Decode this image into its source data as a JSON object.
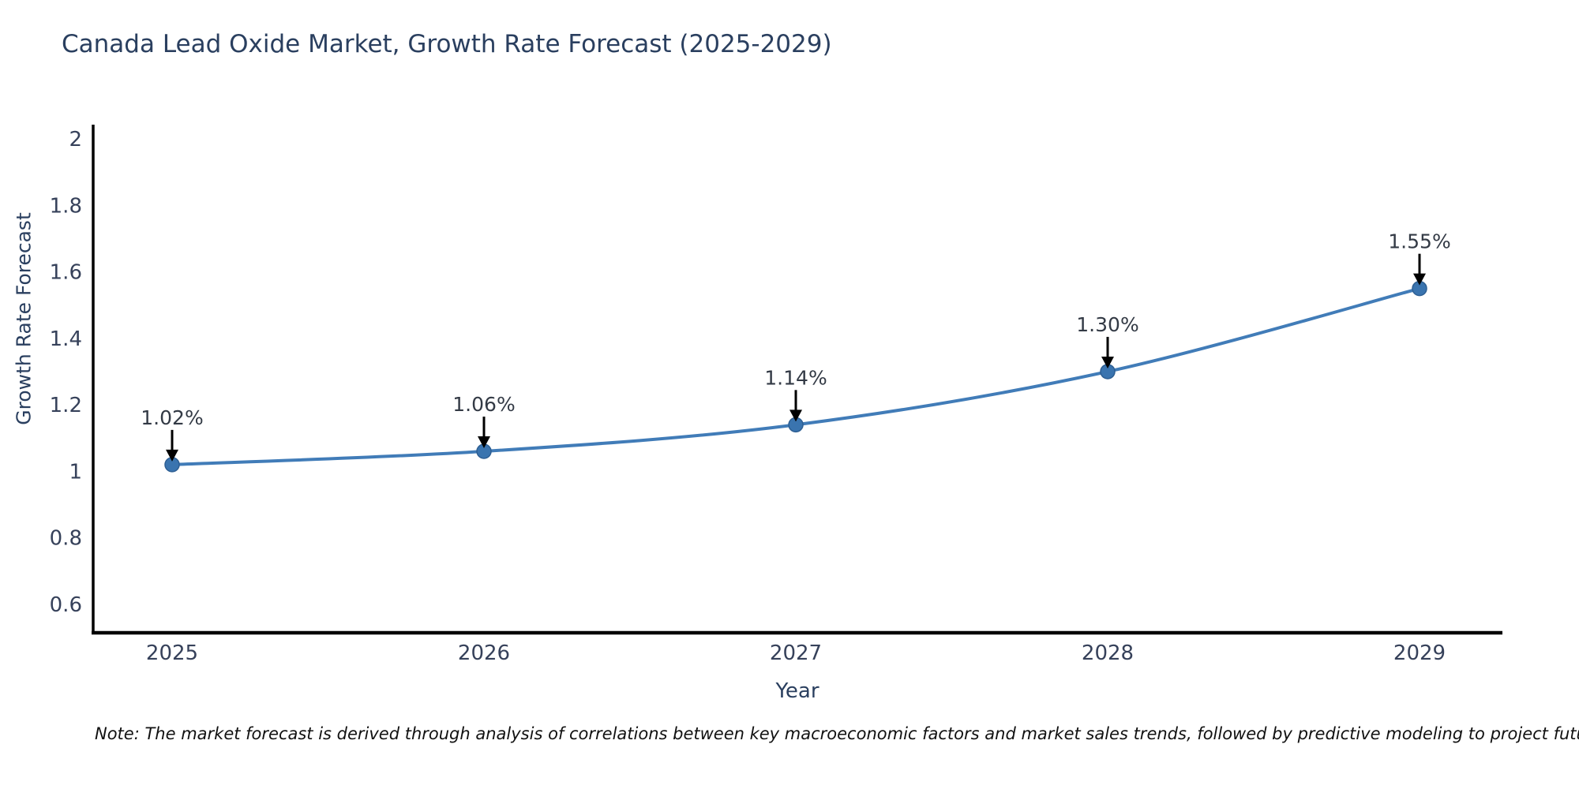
{
  "title": "Canada Lead Oxide Market, Growth Rate Forecast (2025-2029)",
  "footnote": "Note: The market forecast is derived through analysis of correlations between key macroeconomic factors and market sales trends, followed by predictive modeling to project future sales",
  "chart_data": {
    "type": "line",
    "title": "Canada Lead Oxide Market, Growth Rate Forecast (2025-2029)",
    "xlabel": "Year",
    "ylabel": "Growth Rate Forecast",
    "categories": [
      "2025",
      "2026",
      "2027",
      "2028",
      "2029"
    ],
    "series": [
      {
        "name": "Growth Rate Forecast",
        "values": [
          1.02,
          1.06,
          1.14,
          1.3,
          1.55
        ],
        "point_labels": [
          "1.02%",
          "1.06%",
          "1.14%",
          "1.30%",
          "1.55%"
        ]
      }
    ],
    "ytick_labels": [
      "2",
      "1.8",
      "1.6",
      "1.4",
      "1.2",
      "1",
      "0.8",
      "0.6"
    ],
    "ytick_values": [
      2,
      1.8,
      1.6,
      1.4,
      1.2,
      1,
      0.8,
      0.6
    ],
    "ylim": [
      0.514,
      2.043
    ],
    "grid": false,
    "legend_position": "none",
    "line_shape": "spline",
    "colors": {
      "line": "#417cb8",
      "marker_fill": "#3a74af",
      "marker_stroke": "#2e5f93",
      "axis_line": "#000000",
      "tick_text": "#36415a",
      "title_text": "#2a3f5f",
      "annotation_text": "#333a45",
      "annotation_arrow": "#000000",
      "note_text": "#111111",
      "background": "#ffffff"
    }
  }
}
